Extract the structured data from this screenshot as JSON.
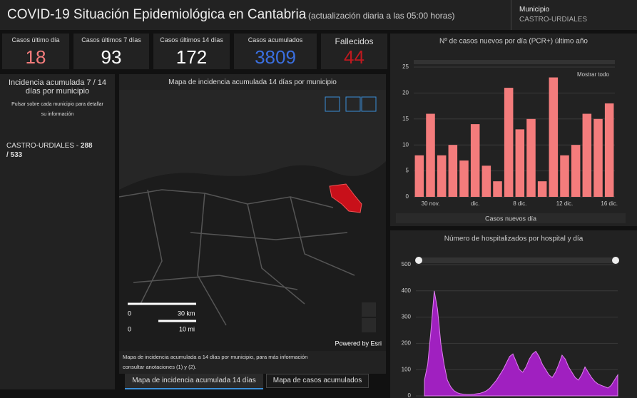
{
  "header": {
    "title": "COVID-19 Situación Epidemiológica en Cantabria",
    "subtitle": "(actualización diaria a las 05:00 horas)",
    "municipio_label": "Municipio",
    "municipio": "CASTRO-URDIALES"
  },
  "kpis": [
    {
      "label": "Casos último día",
      "value": 18,
      "color": "#f47c7c"
    },
    {
      "label": "Casos últimos 7 días",
      "value": 93,
      "color": "#ffffff"
    },
    {
      "label": "Casos últimos 14 días",
      "value": 172,
      "color": "#ffffff"
    },
    {
      "label": "Casos acumulados",
      "value": 3809,
      "color": "#3a6fe0"
    },
    {
      "label": "Fallecidos",
      "value": 44,
      "color": "#c0191f"
    }
  ],
  "incidence": {
    "title": "Incidencia acumulada 7 / 14 días por municipio",
    "hint": "Pulsar sobre cada municipio para detallar su información",
    "municipio": "CASTRO-URDIALES -",
    "incidence_7": 288,
    "separator": "/",
    "incidence_14": 533
  },
  "map": {
    "title": "Mapa de incidencia acumulada 14 días por municipio",
    "scale": [
      "0",
      "30 km",
      "0",
      "10 mi"
    ],
    "attribution": "Powered by Esri",
    "note": "Mapa de incidencia acumulada a 14 días por municipio, para más información consultar anotaciones (1) y (2).",
    "tabs": [
      "Mapa de incidencia acumulada 14 días",
      "Mapa de casos acumulados"
    ]
  },
  "chart_data": [
    {
      "type": "bar",
      "title": "Nº de casos nuevos por día (PCR+) último año",
      "zoom_label": "Mostrar todo",
      "xlabel": "Casos nuevos día",
      "color": "#f47c7c",
      "categories": [
        null,
        "30 nov.",
        null,
        null,
        null,
        "dic.",
        null,
        null,
        null,
        "8 dic.",
        null,
        null,
        null,
        "12 dic.",
        null,
        null,
        null,
        "16 dic."
      ],
      "values": [
        8,
        16,
        8,
        10,
        7,
        14,
        6,
        3,
        21,
        13,
        15,
        3,
        23,
        8,
        10,
        16,
        15,
        18
      ],
      "ylim": [
        0,
        25
      ],
      "yticks": [
        0,
        5,
        10,
        15,
        20,
        25
      ],
      "grid": true
    },
    {
      "type": "area",
      "title": "Número de hospitalizados por hospital y día",
      "color": "#a020c0",
      "values": [
        60,
        120,
        250,
        400,
        330,
        200,
        120,
        60,
        35,
        20,
        12,
        8,
        6,
        5,
        5,
        6,
        8,
        10,
        14,
        20,
        30,
        45,
        60,
        80,
        100,
        125,
        150,
        160,
        130,
        100,
        90,
        110,
        140,
        160,
        170,
        150,
        120,
        100,
        80,
        70,
        90,
        120,
        155,
        140,
        110,
        90,
        70,
        60,
        80,
        110,
        90,
        70,
        55,
        45,
        40,
        35,
        30,
        40,
        60,
        80
      ],
      "ylim": [
        0,
        500
      ],
      "yticks": [
        0,
        100,
        200,
        300,
        400,
        500
      ],
      "grid": true
    }
  ]
}
